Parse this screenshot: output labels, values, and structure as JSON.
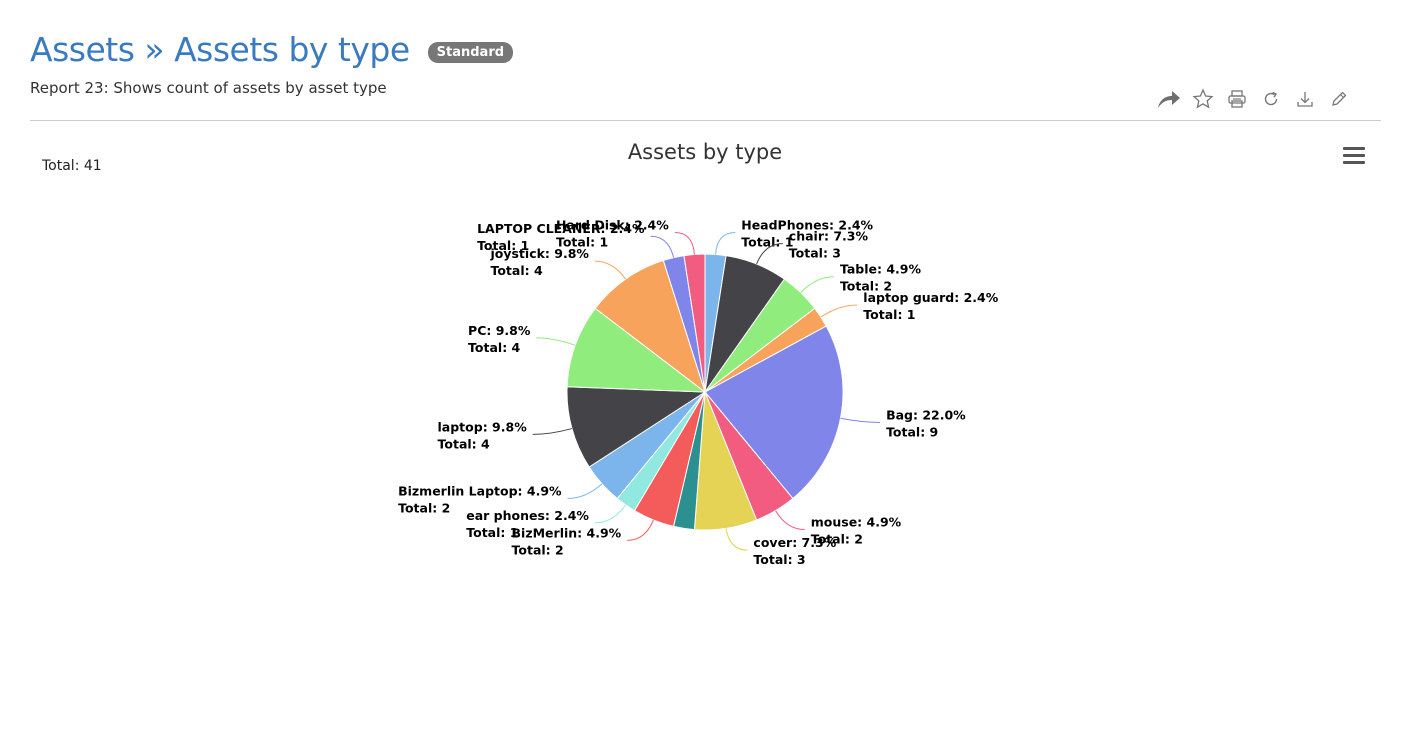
{
  "header": {
    "title": "Assets » Assets by type",
    "badge": "Standard",
    "subtitle": "Report  23: Shows count of assets by asset type"
  },
  "toolbar": {
    "icons": [
      "share-icon",
      "star-icon",
      "print-icon",
      "refresh-icon",
      "download-icon",
      "edit-icon"
    ]
  },
  "summary": {
    "total_text": "Total: 41"
  },
  "chart_data": {
    "type": "pie",
    "title": "Assets by type",
    "total": 41,
    "slices": [
      {
        "name": "HeadPhones",
        "value": 1,
        "percent": "2.4%",
        "color": "#7cb5ec"
      },
      {
        "name": "chair",
        "value": 3,
        "percent": "7.3%",
        "color": "#434348"
      },
      {
        "name": "Table",
        "value": 2,
        "percent": "4.9%",
        "color": "#90ed7d"
      },
      {
        "name": "laptop guard",
        "value": 1,
        "percent": "2.4%",
        "color": "#f7a35c"
      },
      {
        "name": "Bag",
        "value": 9,
        "percent": "22.0%",
        "color": "#8085e9"
      },
      {
        "name": "mouse",
        "value": 2,
        "percent": "4.9%",
        "color": "#f15c80"
      },
      {
        "name": "cover",
        "value": 3,
        "percent": "7.3%",
        "color": "#e4d354"
      },
      {
        "name": "",
        "value": 1,
        "percent": "",
        "color": "#2b908f"
      },
      {
        "name": "BizMerlin",
        "value": 2,
        "percent": "4.9%",
        "color": "#f45b5b"
      },
      {
        "name": "ear phones",
        "value": 1,
        "percent": "2.4%",
        "color": "#91e8e1"
      },
      {
        "name": "Bizmerlin Laptop",
        "value": 2,
        "percent": "4.9%",
        "color": "#7cb5ec"
      },
      {
        "name": "laptop",
        "value": 4,
        "percent": "9.8%",
        "color": "#434348"
      },
      {
        "name": "PC",
        "value": 4,
        "percent": "9.8%",
        "color": "#90ed7d"
      },
      {
        "name": "joystick",
        "value": 4,
        "percent": "9.8%",
        "color": "#f7a35c"
      },
      {
        "name": "LAPTOP CLEANER",
        "value": 1,
        "percent": "2.4%",
        "color": "#8085e9"
      },
      {
        "name": "Hard Disk",
        "value": 1,
        "percent": "2.4%",
        "color": "#f15c80"
      }
    ]
  }
}
